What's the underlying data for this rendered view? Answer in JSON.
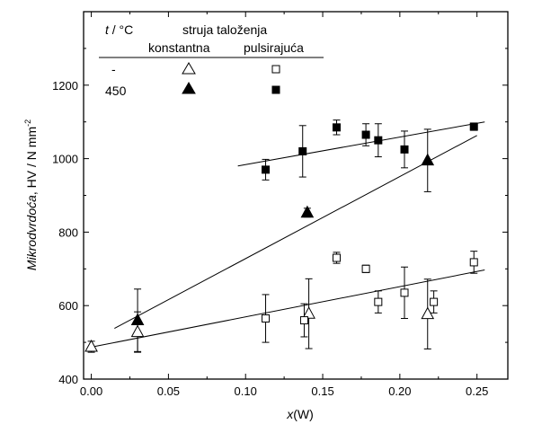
{
  "chart_data": {
    "type": "scatter",
    "xlabel_var": "x",
    "xlabel_rest": "(W)",
    "ylabel_var": "Mikrodvrdoća",
    "ylabel_rest": ", HV / N mm",
    "ylabel_sup": "-2",
    "xlim": [
      -0.005,
      0.27
    ],
    "ylim": [
      400,
      1400
    ],
    "xticks": [
      0.0,
      0.05,
      0.1,
      0.15,
      0.2,
      0.25
    ],
    "xtick_labels": [
      "0.00",
      "0.05",
      "0.10",
      "0.15",
      "0.20",
      "0.25"
    ],
    "yticks": [
      400,
      600,
      800,
      1000,
      1200
    ],
    "ytick_labels": [
      "400",
      "600",
      "800",
      "1000",
      "1200"
    ],
    "grid": false,
    "legend": {
      "placement": "top-left",
      "t_label": "t",
      "t_unit": " / °C",
      "current_label": "struja taloženja",
      "col_constant": "konstantna",
      "col_pulse": "pulsirajuća",
      "row1_temp": "-",
      "row2_temp": "450"
    },
    "series": [
      {
        "marker": "triangle-open",
        "temperature": "-",
        "current": "konstantna",
        "points": [
          {
            "x": 0.0,
            "y": 488,
            "err": 15
          },
          {
            "x": 0.03,
            "y": 528,
            "err": 55
          },
          {
            "x": 0.141,
            "y": 578,
            "err": 95
          },
          {
            "x": 0.218,
            "y": 577,
            "err": 95
          }
        ]
      },
      {
        "marker": "square-open",
        "temperature": "-",
        "current": "pulsirajuća",
        "points": [
          {
            "x": 0.113,
            "y": 565,
            "err": 65
          },
          {
            "x": 0.138,
            "y": 560,
            "err": 45
          },
          {
            "x": 0.159,
            "y": 730,
            "err": 15
          },
          {
            "x": 0.178,
            "y": 700,
            "err": 10
          },
          {
            "x": 0.186,
            "y": 610,
            "err": 30
          },
          {
            "x": 0.203,
            "y": 635,
            "err": 70
          },
          {
            "x": 0.222,
            "y": 610,
            "err": 30
          },
          {
            "x": 0.248,
            "y": 718,
            "err": 30
          }
        ]
      },
      {
        "marker": "triangle-filled",
        "temperature": "450",
        "current": "konstantna",
        "points": [
          {
            "x": 0.03,
            "y": 560,
            "err": 85
          },
          {
            "x": 0.14,
            "y": 853,
            "err": 12
          },
          {
            "x": 0.218,
            "y": 995,
            "err": 85
          }
        ]
      },
      {
        "marker": "square-filled",
        "temperature": "450",
        "current": "pulsirajuća",
        "points": [
          {
            "x": 0.113,
            "y": 970,
            "err": 28
          },
          {
            "x": 0.137,
            "y": 1020,
            "err": 70
          },
          {
            "x": 0.159,
            "y": 1085,
            "err": 20
          },
          {
            "x": 0.178,
            "y": 1065,
            "err": 30
          },
          {
            "x": 0.186,
            "y": 1050,
            "err": 45
          },
          {
            "x": 0.203,
            "y": 1025,
            "err": 50
          },
          {
            "x": 0.248,
            "y": 1087,
            "err": 10
          }
        ]
      }
    ],
    "fit_lines": [
      {
        "x1": 0.0,
        "y1": 487,
        "x2": 0.255,
        "y2": 697
      },
      {
        "x1": 0.015,
        "y1": 538,
        "x2": 0.25,
        "y2": 1063
      },
      {
        "x1": 0.095,
        "y1": 980,
        "x2": 0.255,
        "y2": 1100
      }
    ]
  }
}
